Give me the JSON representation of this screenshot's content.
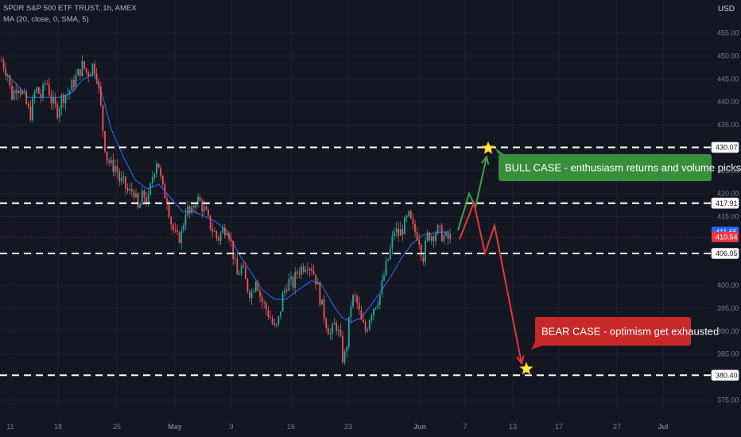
{
  "header": {
    "symbol_line": "SPDR S&P 500 ETF TRUST, 1h, AMEX",
    "indicator_line": "MA (20, close, 0, SMA, 5)",
    "currency": "USD"
  },
  "colors": {
    "background": "#131722",
    "grid": "#1e222d",
    "up": "#26a69a",
    "down": "#ef5350",
    "ma": "#2962ff",
    "level_line": "#ffffff",
    "bull_box": "#388e3c",
    "bear_box": "#c62828",
    "current_price_tag": "#f23645",
    "ma_price_tag": "#2962ff",
    "star": "#ffeb3b"
  },
  "chart_data": {
    "type": "candlestick",
    "title": "SPDR S&P 500 ETF TRUST, 1h, AMEX",
    "y_unit": "USD",
    "ylim": [
      373,
      457
    ],
    "y_ticks": [
      "455.00",
      "450.00",
      "445.00",
      "440.00",
      "435.00",
      "425.00",
      "420.00",
      "415.00",
      "400.00",
      "395.00",
      "390.00",
      "385.00",
      "375.00"
    ],
    "x_ticks": [
      "11",
      "18",
      "25",
      "May",
      "9",
      "16",
      "23",
      "Jun",
      "7",
      "13",
      "17",
      "27",
      "Jul"
    ],
    "price_path": [
      [
        2,
        449
      ],
      [
        10,
        446
      ],
      [
        14,
        441
      ],
      [
        22,
        444
      ],
      [
        30,
        441
      ],
      [
        38,
        437
      ],
      [
        45,
        443
      ],
      [
        52,
        441
      ],
      [
        58,
        445
      ],
      [
        65,
        440
      ],
      [
        72,
        438
      ],
      [
        78,
        441
      ],
      [
        86,
        442
      ],
      [
        92,
        444
      ],
      [
        98,
        446
      ],
      [
        104,
        448
      ],
      [
        110,
        446
      ],
      [
        116,
        448
      ],
      [
        121,
        447
      ],
      [
        126,
        440
      ],
      [
        130,
        433
      ],
      [
        134,
        428
      ],
      [
        140,
        426
      ],
      [
        146,
        426
      ],
      [
        150,
        423
      ],
      [
        156,
        422
      ],
      [
        162,
        420
      ],
      [
        168,
        421
      ],
      [
        174,
        416
      ],
      [
        180,
        420
      ],
      [
        186,
        418
      ],
      [
        192,
        424
      ],
      [
        198,
        428
      ],
      [
        204,
        421
      ],
      [
        210,
        419
      ],
      [
        216,
        413
      ],
      [
        222,
        410
      ],
      [
        228,
        411
      ],
      [
        234,
        417
      ],
      [
        240,
        415
      ],
      [
        246,
        419
      ],
      [
        252,
        418
      ],
      [
        258,
        416
      ],
      [
        262,
        414
      ],
      [
        268,
        412
      ],
      [
        274,
        410
      ],
      [
        280,
        412
      ],
      [
        286,
        413
      ],
      [
        292,
        408
      ],
      [
        298,
        402
      ],
      [
        304,
        404
      ],
      [
        310,
        400
      ],
      [
        316,
        398
      ],
      [
        322,
        402
      ],
      [
        328,
        397
      ],
      [
        334,
        395
      ],
      [
        340,
        393
      ],
      [
        346,
        390
      ],
      [
        350,
        392
      ],
      [
        356,
        398
      ],
      [
        362,
        401
      ],
      [
        368,
        400
      ],
      [
        374,
        403
      ],
      [
        380,
        404
      ],
      [
        386,
        405
      ],
      [
        392,
        404
      ],
      [
        398,
        401
      ],
      [
        404,
        396
      ],
      [
        410,
        392
      ],
      [
        416,
        389
      ],
      [
        422,
        392
      ],
      [
        428,
        388
      ],
      [
        432,
        383
      ],
      [
        436,
        387
      ],
      [
        442,
        397
      ],
      [
        448,
        397
      ],
      [
        454,
        392
      ],
      [
        460,
        390
      ],
      [
        466,
        394
      ],
      [
        472,
        396
      ],
      [
        478,
        398
      ],
      [
        484,
        403
      ],
      [
        490,
        407
      ],
      [
        496,
        412
      ],
      [
        502,
        411
      ],
      [
        508,
        413
      ],
      [
        514,
        415
      ],
      [
        520,
        412
      ],
      [
        526,
        411
      ],
      [
        532,
        406
      ],
      [
        538,
        411
      ],
      [
        544,
        411
      ],
      [
        550,
        412
      ],
      [
        556,
        411
      ],
      [
        562,
        410
      ],
      [
        568,
        410.5
      ]
    ],
    "moving_average": {
      "name": "MA (20, close, 0, SMA, 5)",
      "path": [
        [
          8,
          446
        ],
        [
          20,
          444
        ],
        [
          35,
          441
        ],
        [
          55,
          441
        ],
        [
          75,
          441
        ],
        [
          90,
          442
        ],
        [
          105,
          445
        ],
        [
          118,
          446
        ],
        [
          128,
          442
        ],
        [
          140,
          434
        ],
        [
          155,
          428
        ],
        [
          170,
          423
        ],
        [
          185,
          421
        ],
        [
          200,
          422
        ],
        [
          215,
          419
        ],
        [
          230,
          416
        ],
        [
          245,
          416
        ],
        [
          258,
          415
        ],
        [
          270,
          414
        ],
        [
          285,
          412
        ],
        [
          300,
          407
        ],
        [
          315,
          403
        ],
        [
          330,
          399
        ],
        [
          345,
          397
        ],
        [
          360,
          397
        ],
        [
          375,
          399
        ],
        [
          392,
          401
        ],
        [
          405,
          400
        ],
        [
          418,
          396
        ],
        [
          430,
          393
        ],
        [
          442,
          392
        ],
        [
          455,
          393
        ],
        [
          468,
          396
        ],
        [
          480,
          399
        ],
        [
          492,
          402
        ],
        [
          505,
          406
        ],
        [
          518,
          409
        ],
        [
          532,
          411
        ],
        [
          548,
          411.5
        ],
        [
          565,
          411.65
        ]
      ]
    },
    "levels": [
      {
        "price": 430.07,
        "label": "430.07"
      },
      {
        "price": 417.91,
        "label": "417.91"
      },
      {
        "price": 406.95,
        "label": "406.95"
      },
      {
        "price": 380.4,
        "label": "380.40"
      }
    ],
    "price_tags": {
      "ma": {
        "price": 411.65,
        "label": "411.65"
      },
      "current": {
        "price": 410.54,
        "label": "410.54"
      }
    },
    "projections": {
      "bull": {
        "label": "BULL CASE - enthusiasm returns and volume picks up",
        "path": [
          [
            576,
            412
          ],
          [
            590,
            420
          ],
          [
            598,
            417
          ],
          [
            612,
            428
          ]
        ],
        "target": 430.07
      },
      "bear": {
        "label": "BEAR CASE - optimism get exhausted",
        "path": [
          [
            578,
            410
          ],
          [
            596,
            418
          ],
          [
            610,
            407
          ],
          [
            622,
            413
          ],
          [
            656,
            383
          ]
        ],
        "target": 380.4
      }
    }
  }
}
